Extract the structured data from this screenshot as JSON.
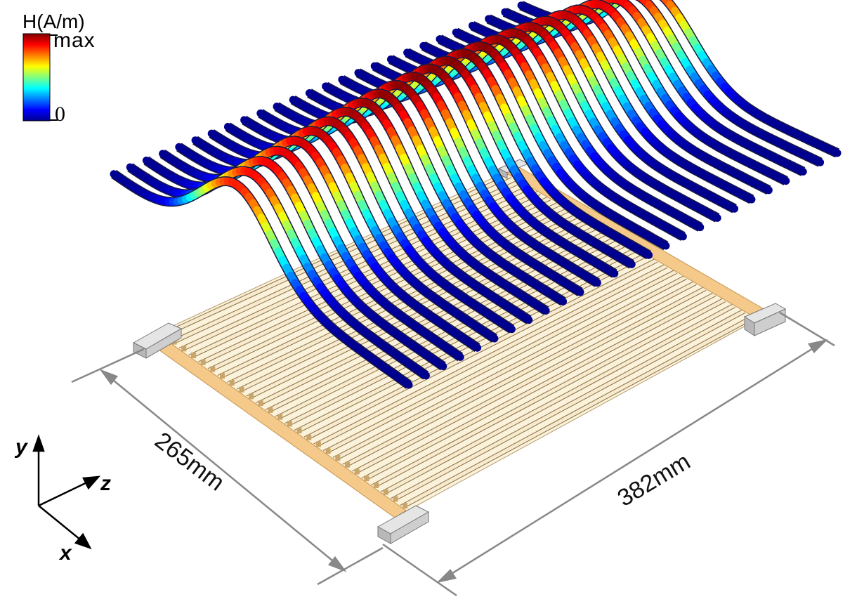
{
  "colorbar": {
    "title": "H(A/m)",
    "max_label": "max",
    "min_label": "0",
    "stops": [
      "#00008f",
      "#0000ff",
      "#0080ff",
      "#00ffff",
      "#80ff80",
      "#ffff00",
      "#ff8000",
      "#ff0000",
      "#800000"
    ]
  },
  "dimensions": {
    "width_label": "265mm",
    "length_label": "382mm"
  },
  "axes": {
    "y_label": "y",
    "z_label": "z",
    "x_label": "x"
  },
  "device": {
    "conductor_count": 26,
    "ribbon_count": 26,
    "frame_color": "#f5c98a",
    "conductor_color": "#f6ead0",
    "terminal_color": "#d0cfcf"
  }
}
